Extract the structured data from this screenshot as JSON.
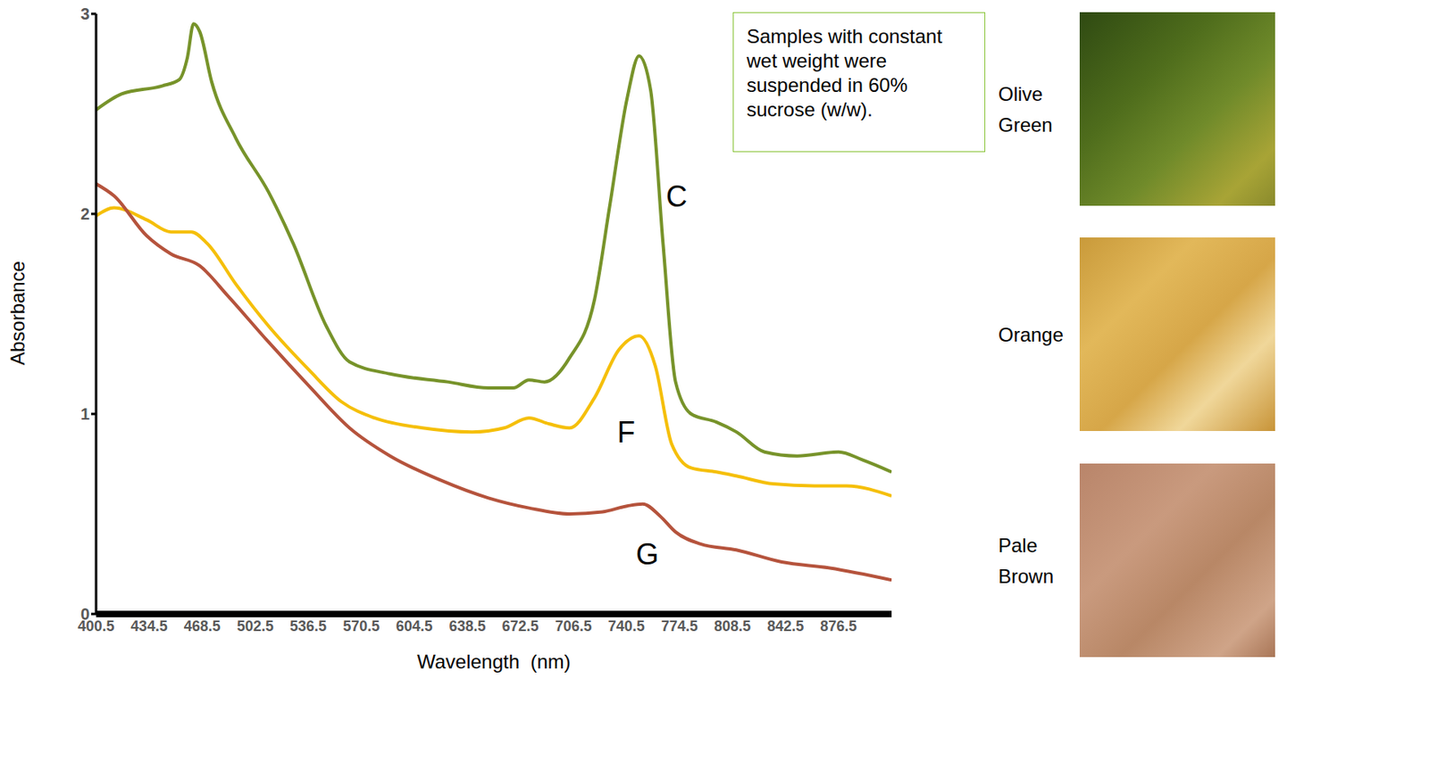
{
  "chart_data": {
    "type": "line",
    "x_label": "Wavelength  (nm)",
    "y_label": "Absorbance",
    "xlim": [
      400.5,
      910.5
    ],
    "xticks": [
      400.5,
      434.5,
      468.5,
      502.5,
      536.5,
      570.5,
      604.5,
      638.5,
      672.5,
      706.5,
      740.5,
      774.5,
      808.5,
      842.5,
      876.5
    ],
    "ylim": [
      0,
      3
    ],
    "yticks": [
      0,
      1,
      2,
      3
    ],
    "grid": false,
    "annotation": "Samples with constant wet weight were suspended in 60% sucrose (w/w).",
    "swatches": [
      "Olive Green",
      "Orange",
      "Pale Brown"
    ],
    "series": [
      {
        "name": "C",
        "color": "#77932a",
        "x": [
          400.5,
          417,
          443,
          453.7,
          459,
          463,
          467,
          474.6,
          490,
          511,
          527,
          548,
          563,
          589,
          626,
          652,
          668,
          678,
          688,
          704,
          720,
          730,
          741,
          748.6,
          756,
          764,
          772,
          782,
          798,
          811,
          829,
          850,
          876.5,
          892,
          910.5
        ],
        "values": [
          2.52,
          2.6,
          2.64,
          2.67,
          2.78,
          2.95,
          2.91,
          2.66,
          2.38,
          2.11,
          1.85,
          1.44,
          1.26,
          1.2,
          1.16,
          1.13,
          1.13,
          1.17,
          1.16,
          1.28,
          1.57,
          2.05,
          2.58,
          2.79,
          2.62,
          1.85,
          1.16,
          1.0,
          0.96,
          0.91,
          0.81,
          0.79,
          0.81,
          0.77,
          0.71
        ]
      },
      {
        "name": "F",
        "color": "#f5bf0a",
        "x": [
          400.5,
          412,
          433,
          448.5,
          461.6,
          472,
          490,
          511,
          537,
          558,
          579,
          610,
          641.6,
          662,
          678,
          691,
          704,
          720,
          735.6,
          748.6,
          759,
          769.5,
          782,
          798,
          811,
          835,
          861,
          881.7,
          910.5
        ],
        "values": [
          1.99,
          2.03,
          1.97,
          1.91,
          1.91,
          1.85,
          1.65,
          1.44,
          1.22,
          1.06,
          0.98,
          0.93,
          0.91,
          0.93,
          0.98,
          0.95,
          0.93,
          1.08,
          1.32,
          1.39,
          1.24,
          0.85,
          0.73,
          0.71,
          0.69,
          0.65,
          0.64,
          0.64,
          0.59
        ]
      },
      {
        "name": "G",
        "color": "#b5533c",
        "x": [
          400.5,
          412,
          433,
          448.5,
          467,
          485,
          511,
          537,
          563,
          589,
          621,
          652,
          678,
          704,
          725,
          741,
          751,
          762,
          772,
          788,
          811,
          840,
          871,
          910.5
        ],
        "values": [
          2.15,
          2.09,
          1.89,
          1.8,
          1.74,
          1.59,
          1.36,
          1.14,
          0.93,
          0.79,
          0.67,
          0.58,
          0.53,
          0.5,
          0.51,
          0.54,
          0.55,
          0.49,
          0.41,
          0.35,
          0.32,
          0.26,
          0.23,
          0.17
        ]
      }
    ]
  }
}
